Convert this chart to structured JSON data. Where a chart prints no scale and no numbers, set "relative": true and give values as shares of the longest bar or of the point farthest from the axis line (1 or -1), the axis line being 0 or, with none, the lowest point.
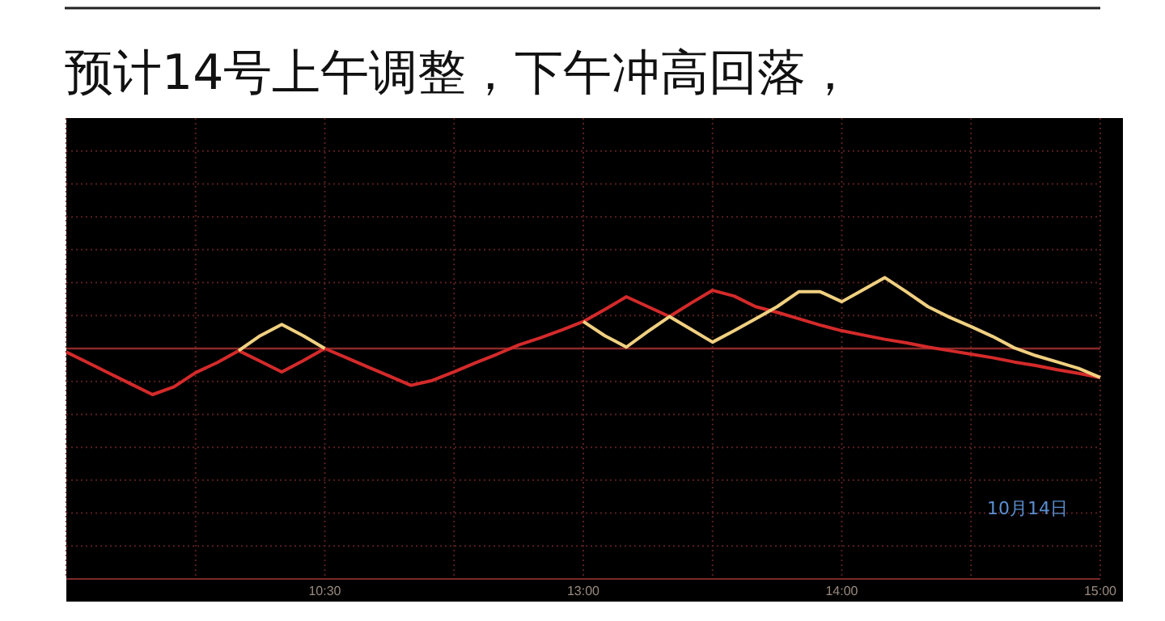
{
  "chart_data": {
    "type": "line",
    "title": "预计14号上午调整，下午冲高回落，",
    "relative": true,
    "categories": [
      null,
      null,
      null,
      null,
      null,
      null,
      null,
      null,
      null,
      null,
      null,
      null,
      "10:30",
      null,
      null,
      null,
      null,
      null,
      null,
      null,
      null,
      null,
      null,
      null,
      "13:00",
      null,
      null,
      null,
      null,
      null,
      null,
      null,
      null,
      null,
      null,
      null,
      "14:00",
      null,
      null,
      null,
      null,
      null,
      null,
      null,
      null,
      null,
      null,
      null,
      "15:00"
    ],
    "series": [
      {
        "color": "#d42a2a",
        "values": [
          -0.05,
          -0.2,
          -0.35,
          -0.5,
          -0.65,
          -0.54,
          -0.34,
          -0.2,
          -0.03,
          -0.18,
          -0.33,
          -0.17,
          0,
          -0.13,
          -0.26,
          -0.39,
          -0.52,
          -0.45,
          -0.33,
          -0.2,
          -0.08,
          0.05,
          0.15,
          0.26,
          0.38,
          0.55,
          0.73,
          0.59,
          0.45,
          0.64,
          0.82,
          0.74,
          0.59,
          0.51,
          0.42,
          0.33,
          0.25,
          0.19,
          0.13,
          0.08,
          0.02,
          -0.03,
          -0.08,
          -0.13,
          -0.19,
          -0.24,
          -0.3,
          -0.35,
          -0.41
        ]
      },
      {
        "color": "#f0d080",
        "values": [
          null,
          null,
          null,
          null,
          null,
          null,
          null,
          null,
          -0.03,
          0.18,
          0.34,
          0.18,
          0,
          null,
          null,
          null,
          null,
          null,
          null,
          null,
          null,
          null,
          null,
          null,
          0.38,
          0.18,
          0.02,
          0.24,
          0.45,
          0.27,
          0.09,
          0.25,
          0.42,
          0.59,
          0.8,
          0.8,
          0.66,
          0.83,
          1.0,
          0.8,
          0.59,
          0.44,
          0.31,
          0.17,
          0.01,
          -0.1,
          -0.19,
          -0.28,
          -0.41
        ]
      }
    ],
    "ref_lines": [
      {
        "axis": "y",
        "value": 0,
        "color": "#8b2a2a"
      }
    ],
    "grid": true,
    "line_style": "solid",
    "marker": "none",
    "annotations": [
      "10月14日"
    ]
  }
}
